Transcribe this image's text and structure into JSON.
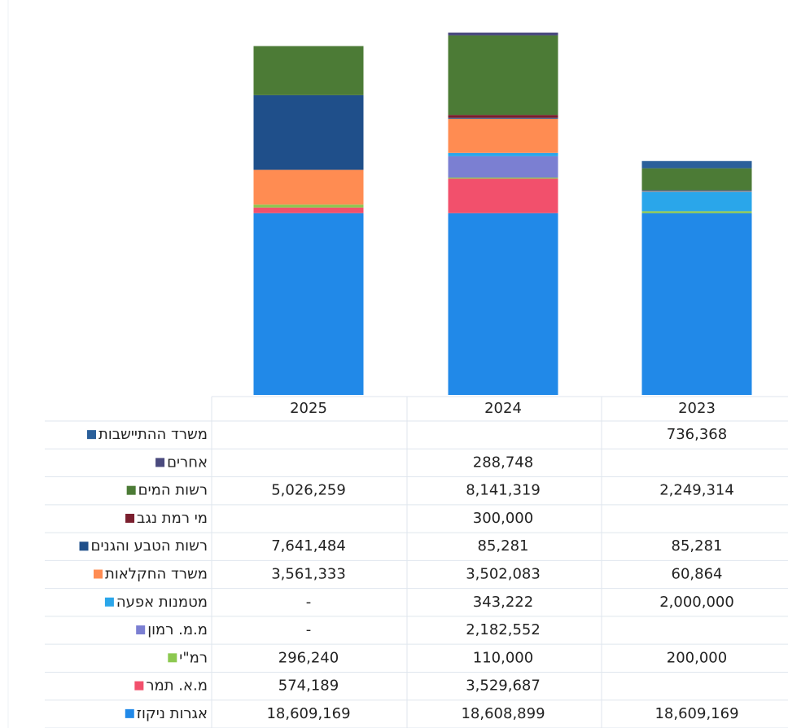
{
  "chart_data": {
    "type": "bar",
    "stacked": true,
    "categories": [
      "2025",
      "2024",
      "2023"
    ],
    "series": [
      {
        "name": "אגרות ניקוז",
        "color": "#2189e8",
        "values": [
          18609169,
          18608899,
          18609169
        ],
        "value_labels": [
          "18,609,169",
          "18,608,899",
          "18,609,169"
        ]
      },
      {
        "name": "מ.א. תמר",
        "color": "#f2506c",
        "values": [
          574189,
          3529687,
          null
        ],
        "value_labels": [
          "574,189",
          "3,529,687",
          null
        ]
      },
      {
        "name": "רמ\"י",
        "color": "#8cc850",
        "values": [
          296240,
          110000,
          200000
        ],
        "value_labels": [
          "296,240",
          "110,000",
          "200,000"
        ]
      },
      {
        "name": "מ.מ. רמון",
        "color": "#7b7fd2",
        "values": [
          0,
          2182552,
          null
        ],
        "value_labels": [
          "-",
          "2,182,552",
          null
        ]
      },
      {
        "name": "מטמנות אפעה",
        "color": "#2aa6ea",
        "values": [
          0,
          343222,
          2000000
        ],
        "value_labels": [
          "-",
          "343,222",
          "2,000,000"
        ]
      },
      {
        "name": "משרד החקלאות",
        "color": "#ff8c52",
        "values": [
          3561333,
          3502083,
          60864
        ],
        "value_labels": [
          "3,561,333",
          "3,502,083",
          "60,864"
        ]
      },
      {
        "name": "רשות הטבע והגנים",
        "color": "#1f4f8a",
        "values": [
          7641484,
          85281,
          85281
        ],
        "value_labels": [
          "7,641,484",
          "85,281",
          "85,281"
        ]
      },
      {
        "name": "מי רמת נגב",
        "color": "#7a1f2e",
        "values": [
          null,
          300000,
          null
        ],
        "value_labels": [
          null,
          "300,000",
          null
        ]
      },
      {
        "name": "רשות המים",
        "color": "#4c7b36",
        "values": [
          5026259,
          8141319,
          2249314
        ],
        "value_labels": [
          "5,026,259",
          "8,141,319",
          "2,249,314"
        ]
      },
      {
        "name": "אחרים",
        "color": "#4a4a7e",
        "values": [
          null,
          288748,
          null
        ],
        "value_labels": [
          null,
          "288,748",
          null
        ]
      },
      {
        "name": "משרד ההתיישבות",
        "color": "#2a5f9a",
        "values": [
          null,
          null,
          736368
        ],
        "value_labels": [
          null,
          null,
          "736,368"
        ]
      }
    ]
  }
}
